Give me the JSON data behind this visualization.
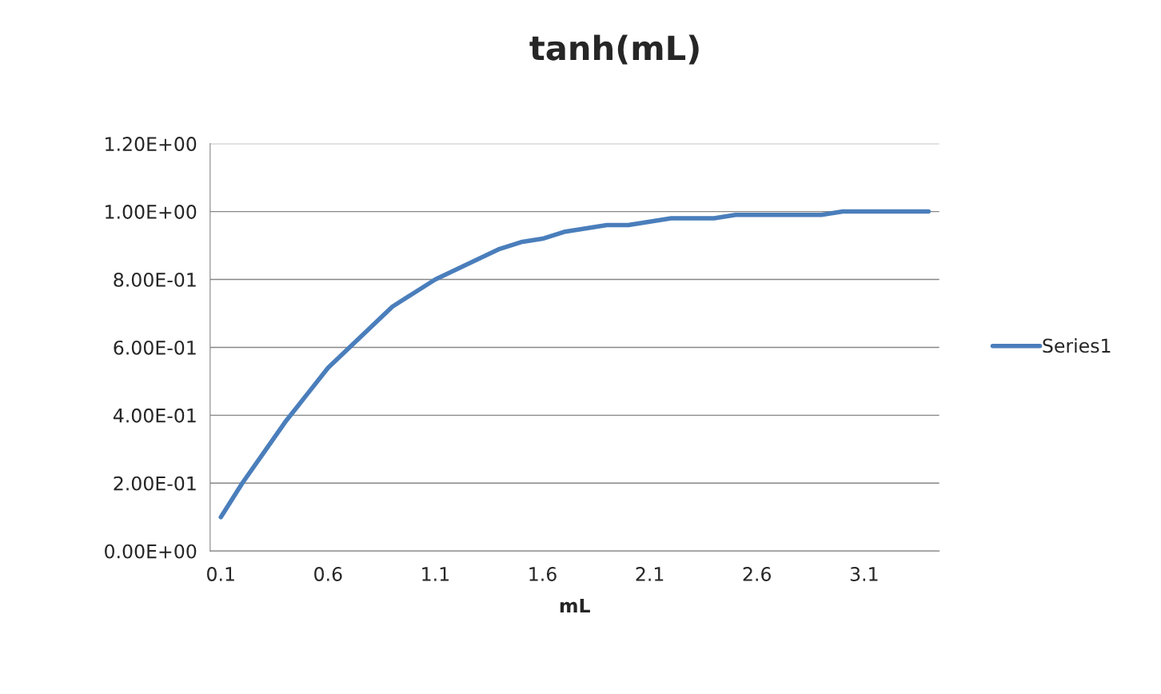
{
  "chart_data": {
    "type": "line",
    "title": "tanh(mL)",
    "xlabel": "mL",
    "categories": [
      "0.1",
      null,
      null,
      null,
      null,
      "0.6",
      null,
      null,
      null,
      null,
      "1.1",
      null,
      null,
      null,
      null,
      "1.6",
      null,
      null,
      null,
      null,
      "2.1",
      null,
      null,
      null,
      null,
      "2.6",
      null,
      null,
      null,
      null,
      "3.1",
      null,
      null,
      null
    ],
    "series": [
      {
        "name": "Series1",
        "color": "#4a7ebb",
        "values": [
          0.1,
          0.2,
          0.29,
          0.38,
          0.46,
          0.54,
          0.6,
          0.66,
          0.72,
          0.76,
          0.8,
          0.83,
          0.86,
          0.89,
          0.91,
          0.92,
          0.94,
          0.95,
          0.96,
          0.96,
          0.97,
          0.98,
          0.98,
          0.98,
          0.99,
          0.99,
          0.99,
          0.99,
          0.99,
          1.0,
          1.0,
          1.0,
          1.0,
          1.0
        ]
      }
    ],
    "ylim": [
      0,
      1.2
    ],
    "yticks": [
      {
        "value": 0,
        "label": "0.00E+00"
      },
      {
        "value": 0.2,
        "label": "2.00E-01"
      },
      {
        "value": 0.4,
        "label": "4.00E-01"
      },
      {
        "value": 0.6,
        "label": "6.00E-01"
      },
      {
        "value": 0.8,
        "label": "8.00E-01"
      },
      {
        "value": 1.0,
        "label": "1.00E+00"
      },
      {
        "value": 1.2,
        "label": "1.20E+00"
      }
    ],
    "grid": "y",
    "legend": "right",
    "marker": "none",
    "line_style": "solid"
  }
}
